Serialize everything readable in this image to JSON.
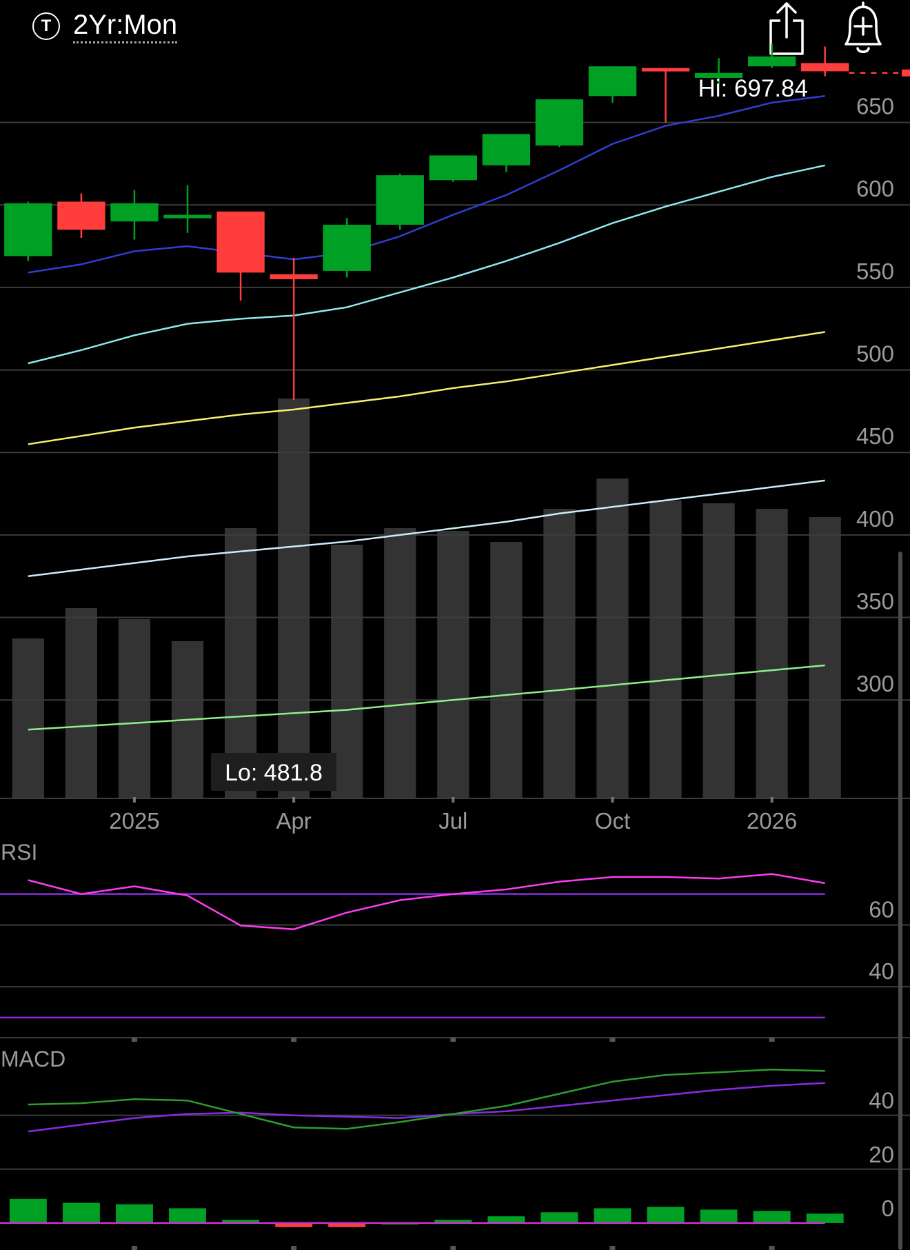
{
  "header": {
    "ticker_icon_glyph": "T",
    "period_label": "2Yr:Mon",
    "share_icon": "share-icon",
    "alert_icon": "add-alert-bell-icon"
  },
  "colors": {
    "up": "#00a024",
    "down": "#ff3d3d",
    "volume": "#333333",
    "ma1": "#2f3fd0",
    "ma2": "#8ee8f0",
    "ma3": "#f5f06a",
    "ma4": "#ccecf8",
    "ma5": "#8ef08a",
    "rsi": "#ff3cf0",
    "rsi_bands": "#8a2be2",
    "macd": "#2e9e2e",
    "macd_signal": "#8a2be2",
    "macd_zero": "#cc33cc",
    "grid": "#3c3c3c"
  },
  "chart_data": [
    {
      "type": "candlestick",
      "name": "price",
      "hi_label": "Hi: 697.84",
      "lo_label": "Lo: 481.8",
      "y_ticks": [
        "650",
        "600",
        "550",
        "500",
        "450",
        "400",
        "350",
        "300"
      ],
      "y_tick_values": [
        650,
        600,
        550,
        500,
        450,
        400,
        350,
        300
      ],
      "ylim": [
        239.5,
        724.2
      ],
      "x_ticks": [
        "2025",
        "Apr",
        "Jul",
        "Oct",
        "2026"
      ],
      "x_tick_index": [
        2.0,
        5.0,
        8.0,
        11.0,
        14.0
      ],
      "x_range": [
        -0.53,
        16.6
      ],
      "last_price": 680,
      "candles": [
        {
          "o": 569,
          "h": 602,
          "l": 566,
          "c": 601
        },
        {
          "o": 602,
          "h": 607,
          "l": 580,
          "c": 585
        },
        {
          "o": 590,
          "h": 609,
          "l": 579,
          "c": 601
        },
        {
          "o": 592,
          "h": 612,
          "l": 583,
          "c": 594
        },
        {
          "o": 596,
          "h": 596,
          "l": 542,
          "c": 559
        },
        {
          "o": 558,
          "h": 568,
          "l": 481.8,
          "c": 555
        },
        {
          "o": 560,
          "h": 592,
          "l": 556,
          "c": 588
        },
        {
          "o": 588,
          "h": 619,
          "l": 585,
          "c": 618
        },
        {
          "o": 615,
          "h": 627,
          "l": 614,
          "c": 630
        },
        {
          "o": 624,
          "h": 640,
          "l": 620,
          "c": 643
        },
        {
          "o": 636,
          "h": 663,
          "l": 635,
          "c": 664
        },
        {
          "o": 666,
          "h": 684,
          "l": 662,
          "c": 684
        },
        {
          "o": 683,
          "h": 683,
          "l": 650,
          "c": 681
        },
        {
          "o": 677,
          "h": 689,
          "l": 673,
          "c": 680
        },
        {
          "o": 684,
          "h": 697.84,
          "l": 683,
          "c": 690
        },
        {
          "o": 686,
          "h": 696,
          "l": 678,
          "c": 681
        }
      ],
      "volume_share": [
        0.58,
        0.69,
        0.65,
        0.57,
        0.98,
        1.45,
        0.92,
        0.98,
        0.97,
        0.93,
        1.05,
        1.16,
        1.08,
        1.07,
        1.05,
        1.02
      ],
      "moving_averages": [
        {
          "color_key": "ma1",
          "values": [
            559,
            564,
            572,
            575,
            571,
            567,
            571,
            581,
            594,
            606,
            621,
            637,
            648,
            654,
            662,
            666
          ]
        },
        {
          "color_key": "ma2",
          "values": [
            504,
            512,
            521,
            528,
            531,
            533,
            538,
            547,
            556,
            566,
            577,
            589,
            599,
            608,
            617,
            624
          ]
        },
        {
          "color_key": "ma3",
          "values": [
            455,
            460,
            465,
            469,
            473,
            476,
            480,
            484,
            489,
            493,
            498,
            503,
            508,
            513,
            518,
            523
          ]
        },
        {
          "color_key": "ma4",
          "values": [
            375,
            379,
            383,
            387,
            390,
            393,
            396,
            400,
            404,
            408,
            413,
            417,
            421,
            425,
            429,
            433
          ]
        },
        {
          "color_key": "ma5",
          "values": [
            282,
            284,
            286,
            288,
            290,
            292,
            294,
            297,
            300,
            303,
            306,
            309,
            312,
            315,
            318,
            321
          ]
        }
      ]
    },
    {
      "type": "line",
      "name": "RSI",
      "label": "RSI",
      "y_ticks": [
        "60",
        "40"
      ],
      "y_tick_values": [
        60,
        40
      ],
      "ylim": [
        23.5,
        86
      ],
      "band_levots": [],
      "bands": [
        70,
        30
      ],
      "values": [
        74.5,
        70,
        72.5,
        69.5,
        59.8,
        58.6,
        64,
        68,
        70,
        71.5,
        74,
        75.5,
        75.5,
        75,
        76.5,
        73.5
      ]
    },
    {
      "type": "bar+line",
      "name": "MACD",
      "label": "MACD",
      "y_ticks": [
        "40",
        "20",
        "0"
      ],
      "y_tick_values": [
        40,
        20,
        0
      ],
      "ylim": [
        -10,
        65
      ],
      "macd": [
        44,
        44.5,
        46,
        45.5,
        40.5,
        35.5,
        35,
        37.5,
        40.5,
        43.5,
        48,
        52.5,
        55,
        56,
        57,
        56.5
      ],
      "signal": [
        34,
        36.5,
        39,
        40.5,
        41,
        40,
        39.5,
        39,
        40.5,
        41.5,
        43.5,
        45.5,
        47.5,
        49.5,
        51,
        52
      ],
      "histogram": [
        9,
        7.5,
        7,
        5.5,
        1.2,
        -1.5,
        -1.5,
        0,
        1.2,
        2.5,
        4,
        5.5,
        6,
        5,
        4.5,
        3.5
      ]
    }
  ]
}
